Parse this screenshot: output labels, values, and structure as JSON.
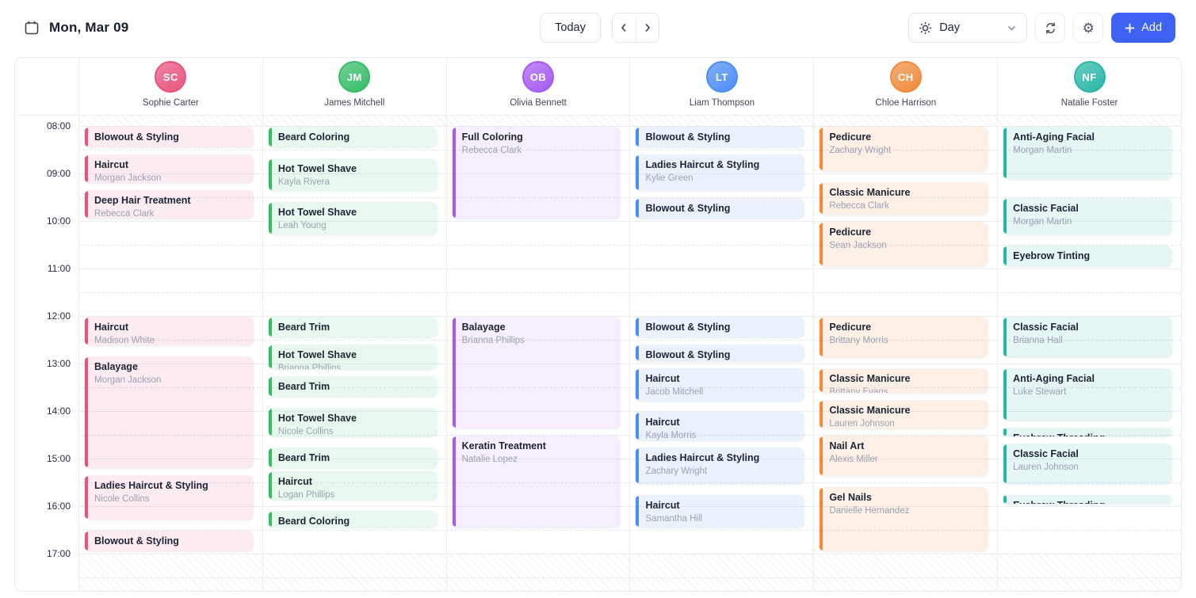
{
  "header": {
    "date_label": "Mon, Mar 09",
    "today_label": "Today",
    "view": {
      "selected": "Day"
    },
    "add_label": "Add",
    "icons": [
      "calendar-icon",
      "chevron-left-icon",
      "chevron-right-icon",
      "day-sun-icon",
      "chevron-down-icon",
      "refresh-icon",
      "settings-icon",
      "plus-icon"
    ],
    "colors": {
      "primary": "#3e63f3"
    }
  },
  "calendar": {
    "time_labels": [
      "08:00",
      "09:00",
      "10:00",
      "11:00",
      "12:00",
      "13:00",
      "14:00",
      "15:00",
      "16:00",
      "17:00"
    ],
    "staff": [
      {
        "name": "Sophie Carter",
        "color": "#e8547e",
        "tint": "rgba(232,84,126,0.11)",
        "events": [
          {
            "title": "Blowout & Styling",
            "client": "",
            "start": "08:00",
            "end": "08:30"
          },
          {
            "title": "Haircut",
            "client": "Morgan Jackson",
            "start": "08:35",
            "end": "09:15"
          },
          {
            "title": "Deep Hair Treatment",
            "client": "Rebecca Clark",
            "start": "09:20",
            "end": "10:00"
          },
          {
            "title": "Haircut",
            "client": "Madison White",
            "start": "12:00",
            "end": "12:40"
          },
          {
            "title": "Balayage",
            "client": "Morgan Jackson",
            "start": "12:50",
            "end": "15:15"
          },
          {
            "title": "Ladies Haircut & Styling",
            "client": "Nicole Collins",
            "start": "15:20",
            "end": "16:20"
          },
          {
            "title": "Blowout & Styling",
            "client": "",
            "start": "16:30",
            "end": "17:00"
          }
        ]
      },
      {
        "name": "James Mitchell",
        "color": "#36bd68",
        "tint": "rgba(54,189,104,0.11)",
        "events": [
          {
            "title": "Beard Coloring",
            "client": "",
            "start": "08:00",
            "end": "08:30"
          },
          {
            "title": "Hot Towel Shave",
            "client": "Kayla Rivera",
            "start": "08:40",
            "end": "09:25"
          },
          {
            "title": "Hot Towel Shave",
            "client": "Leah Young",
            "start": "09:35",
            "end": "10:20"
          },
          {
            "title": "Beard Trim",
            "client": "",
            "start": "12:00",
            "end": "12:30"
          },
          {
            "title": "Hot Towel Shave",
            "client": "Brianna Phillips",
            "start": "12:35",
            "end": "13:10"
          },
          {
            "title": "Beard Trim",
            "client": "",
            "start": "13:15",
            "end": "13:45"
          },
          {
            "title": "Hot Towel Shave",
            "client": "Nicole Collins",
            "start": "13:55",
            "end": "14:35"
          },
          {
            "title": "Beard Trim",
            "client": "",
            "start": "14:45",
            "end": "15:15"
          },
          {
            "title": "Haircut",
            "client": "Logan Phillips",
            "start": "15:15",
            "end": "15:55"
          },
          {
            "title": "Beard Coloring",
            "client": "",
            "start": "16:05",
            "end": "16:30"
          }
        ]
      },
      {
        "name": "Olivia Bennett",
        "color": "#a55bf0",
        "tint": "rgba(165,91,240,0.10)",
        "events": [
          {
            "title": "Full Coloring",
            "client": "Rebecca Clark",
            "start": "08:00",
            "end": "10:00"
          },
          {
            "title": "Balayage",
            "client": "Brianna Phillips",
            "start": "12:00",
            "end": "14:25"
          },
          {
            "title": "Keratin Treatment",
            "client": "Natalie Lopez",
            "start": "14:30",
            "end": "16:30"
          }
        ]
      },
      {
        "name": "Liam Thompson",
        "color": "#4d8df5",
        "tint": "rgba(77,141,245,0.11)",
        "events": [
          {
            "title": "Blowout & Styling",
            "client": "",
            "start": "08:00",
            "end": "08:30"
          },
          {
            "title": "Ladies Haircut & Styling",
            "client": "Kylie Green",
            "start": "08:35",
            "end": "09:25"
          },
          {
            "title": "Blowout & Styling",
            "client": "",
            "start": "09:30",
            "end": "10:00"
          },
          {
            "title": "Blowout & Styling",
            "client": "",
            "start": "12:00",
            "end": "12:30"
          },
          {
            "title": "Blowout & Styling",
            "client": "",
            "start": "12:35",
            "end": "13:00"
          },
          {
            "title": "Haircut",
            "client": "Jacob Mitchell",
            "start": "13:05",
            "end": "13:50"
          },
          {
            "title": "Haircut",
            "client": "Kayla Morris",
            "start": "14:00",
            "end": "14:40"
          },
          {
            "title": "Ladies Haircut & Styling",
            "client": "Zachary Wright",
            "start": "14:45",
            "end": "15:35"
          },
          {
            "title": "Haircut",
            "client": "Samantha Hill",
            "start": "15:45",
            "end": "16:30"
          }
        ]
      },
      {
        "name": "Chloe Harrison",
        "color": "#f08b3d",
        "tint": "rgba(240,139,61,0.13)",
        "events": [
          {
            "title": "Pedicure",
            "client": "Zachary Wright",
            "start": "08:00",
            "end": "09:00"
          },
          {
            "title": "Classic Manicure",
            "client": "Rebecca Clark",
            "start": "09:10",
            "end": "09:55"
          },
          {
            "title": "Pedicure",
            "client": "Sean Jackson",
            "start": "10:00",
            "end": "11:00"
          },
          {
            "title": "Pedicure",
            "client": "Brittany Morris",
            "start": "12:00",
            "end": "12:55"
          },
          {
            "title": "Classic Manicure",
            "client": "Brittany Evans",
            "start": "13:05",
            "end": "13:40"
          },
          {
            "title": "Classic Manicure",
            "client": "Lauren Johnson",
            "start": "13:45",
            "end": "14:25"
          },
          {
            "title": "Nail Art",
            "client": "Alexis Miller",
            "start": "14:30",
            "end": "15:25"
          },
          {
            "title": "Gel Nails",
            "client": "Danielle Hernandez",
            "start": "15:35",
            "end": "17:00"
          }
        ]
      },
      {
        "name": "Natalie Foster",
        "color": "#2ab6a7",
        "tint": "rgba(42,182,167,0.12)",
        "events": [
          {
            "title": "Anti-Aging Facial",
            "client": "Morgan Martin",
            "start": "08:00",
            "end": "09:10"
          },
          {
            "title": "Classic Facial",
            "client": "Morgan Martin",
            "start": "09:30",
            "end": "10:20"
          },
          {
            "title": "Eyebrow Tinting",
            "client": "",
            "start": "10:30",
            "end": "11:00"
          },
          {
            "title": "Classic Facial",
            "client": "Brianna Hall",
            "start": "12:00",
            "end": "12:55"
          },
          {
            "title": "Anti-Aging Facial",
            "client": "Luke Stewart",
            "start": "13:05",
            "end": "14:15"
          },
          {
            "title": "Eyebrow Threading",
            "client": "",
            "start": "14:20",
            "end": "14:35"
          },
          {
            "title": "Classic Facial",
            "client": "Lauren Johnson",
            "start": "14:40",
            "end": "15:35"
          },
          {
            "title": "Eyebrow Threading",
            "client": "",
            "start": "15:45",
            "end": "16:00"
          }
        ]
      }
    ]
  }
}
